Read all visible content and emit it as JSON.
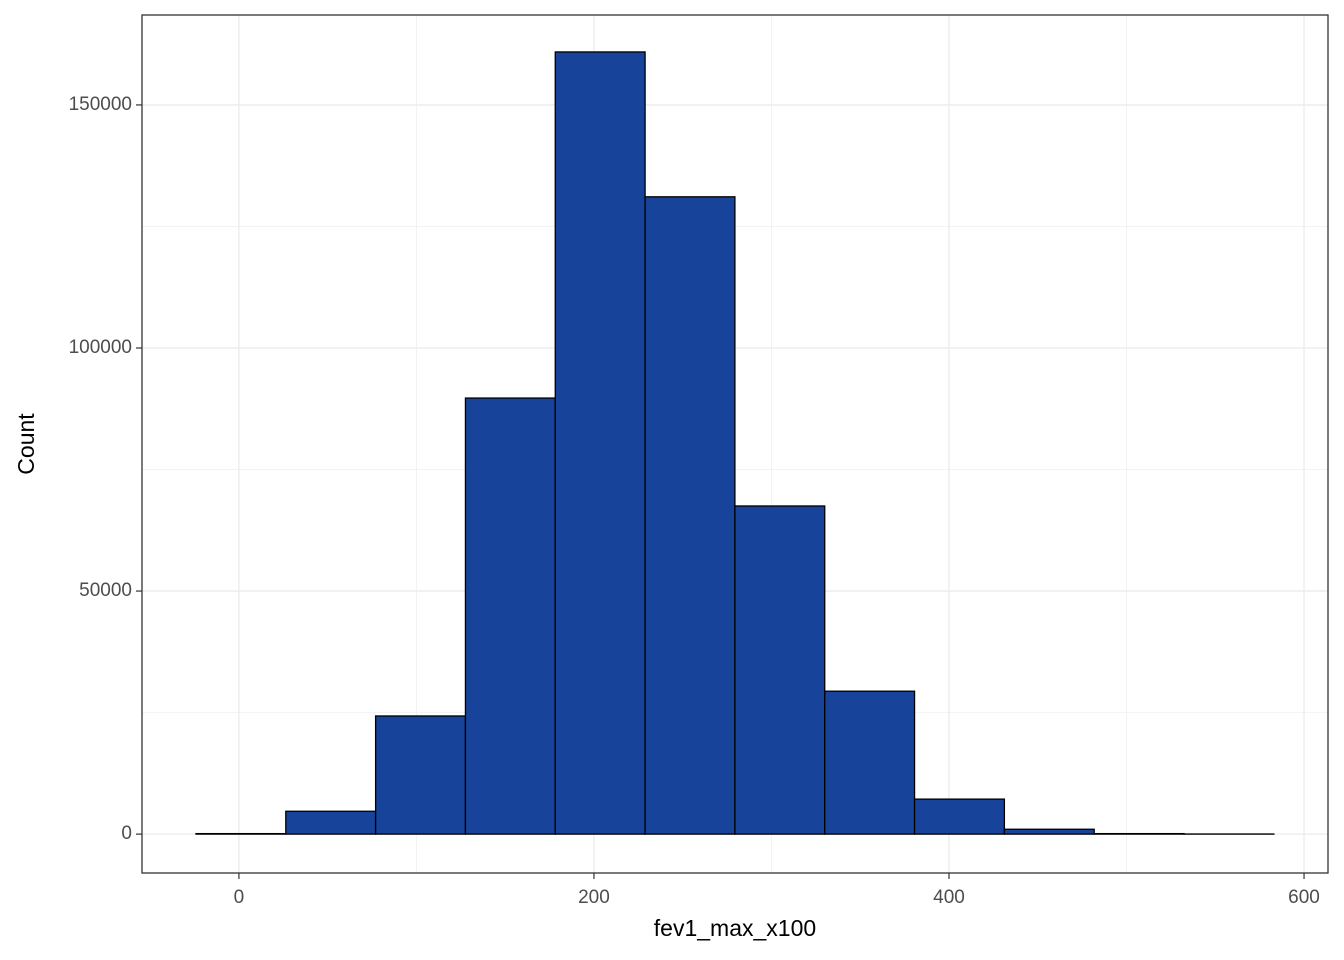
{
  "chart_data": {
    "type": "histogram",
    "x_label": "fev1_max_x100",
    "y_label": "Count",
    "bins": [
      -24.2,
      26.4,
      77.0,
      127.6,
      178.2,
      228.8,
      279.4,
      330.0,
      380.6,
      431.2,
      481.8,
      532.4,
      583.0
    ],
    "counts": [
      100,
      4700,
      24300,
      89700,
      160900,
      131100,
      67500,
      29400,
      7200,
      1000,
      100,
      20
    ],
    "color": "#17439a",
    "xlim": [
      -54.6,
      613.5
    ],
    "xticks": [
      0,
      200,
      400,
      600
    ],
    "ylim": [
      -8000,
      168500
    ],
    "yticks": [
      0,
      50000,
      100000,
      150000
    ],
    "grid": true
  }
}
